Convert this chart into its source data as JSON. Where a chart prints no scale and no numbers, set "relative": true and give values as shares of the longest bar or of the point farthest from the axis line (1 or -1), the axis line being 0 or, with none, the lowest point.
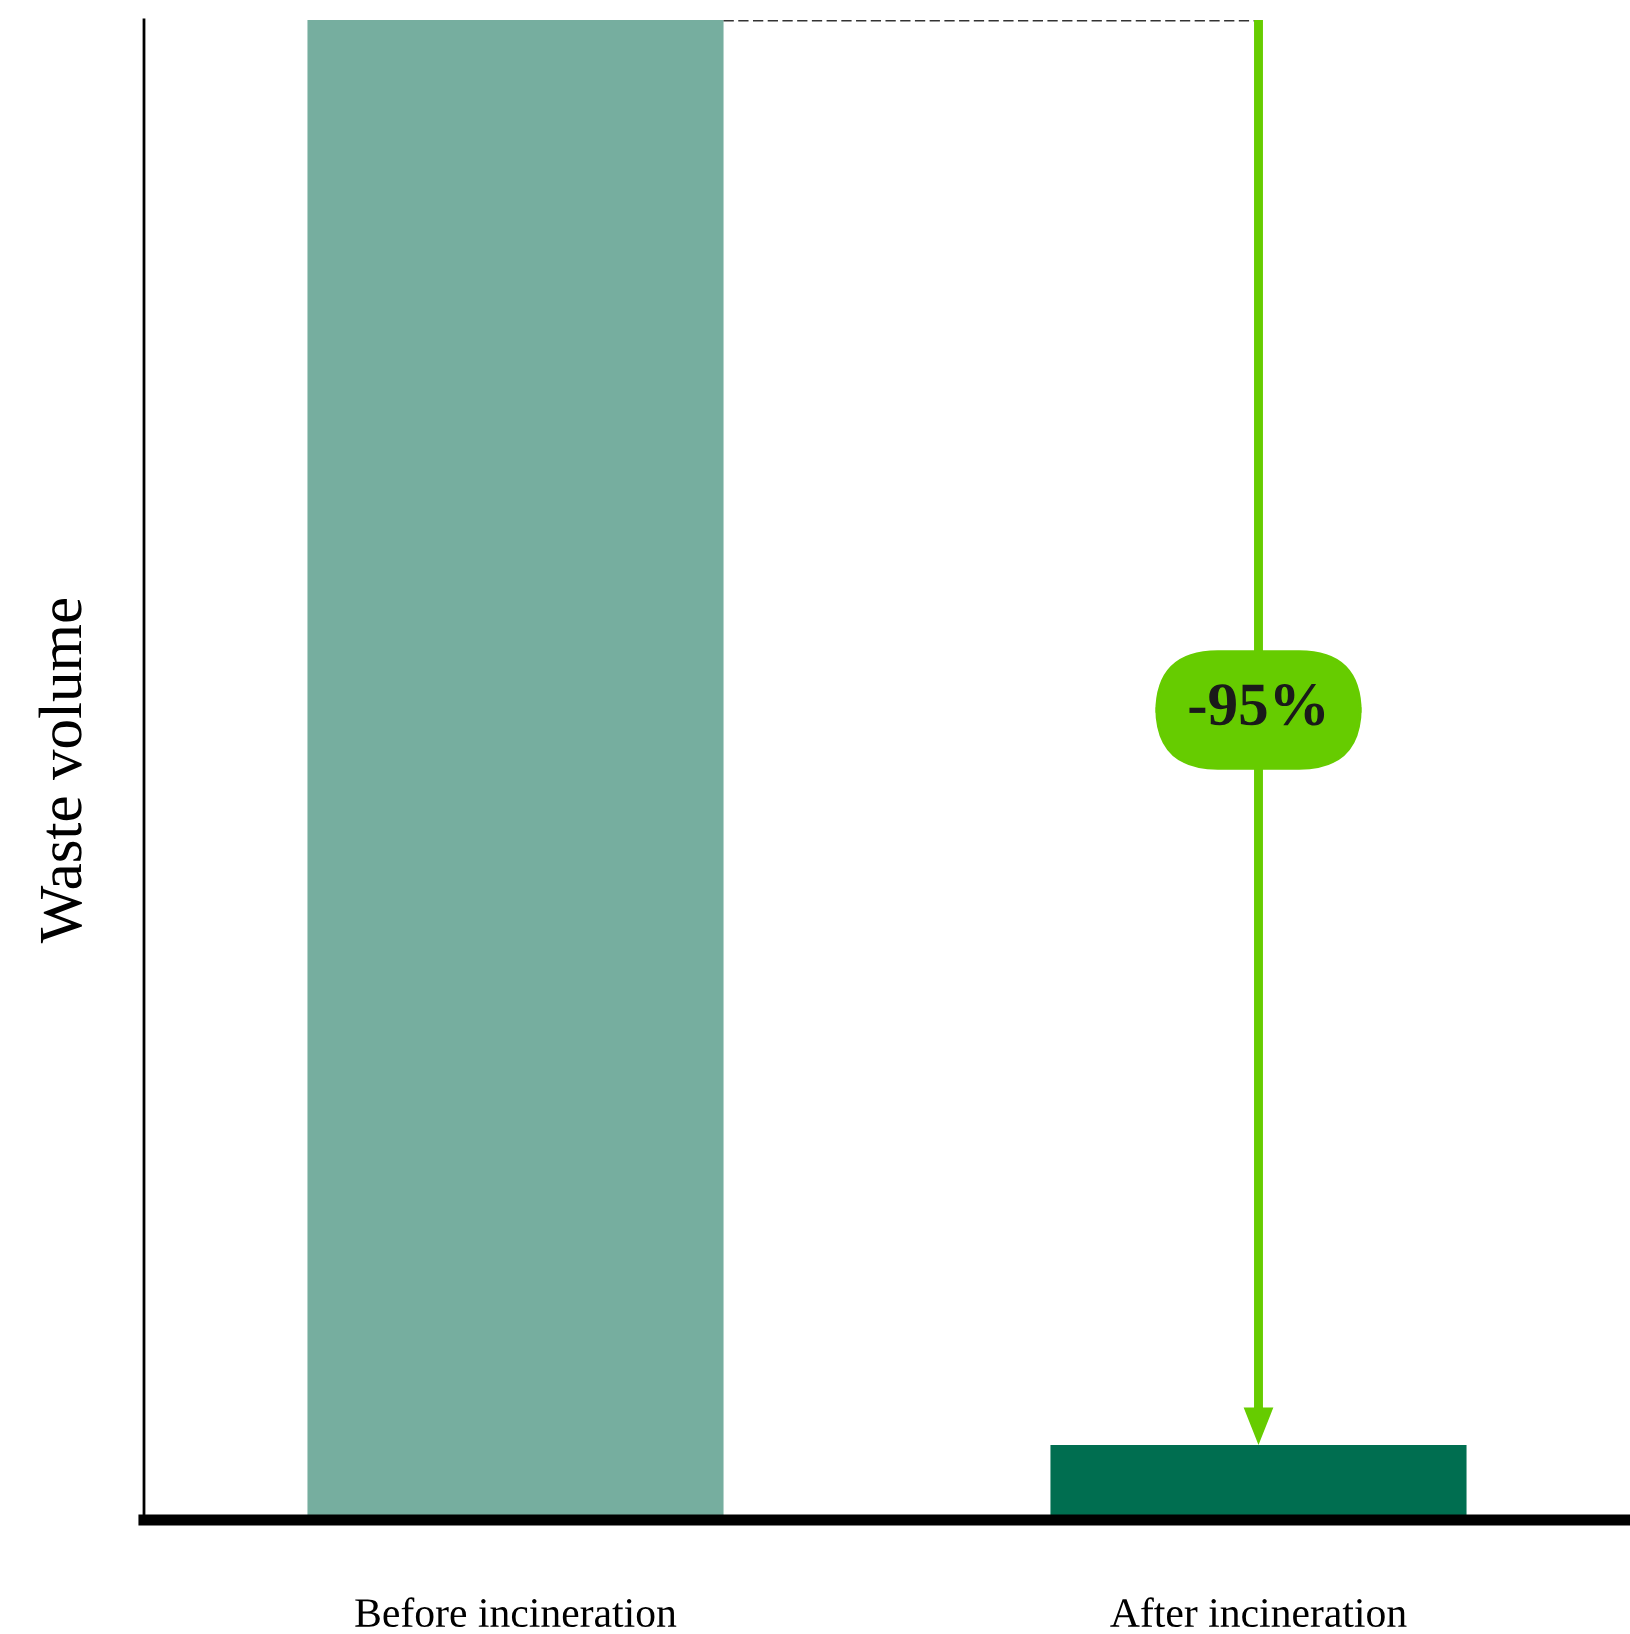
{
  "chart_data": {
    "type": "bar",
    "ylabel": "Waste volume",
    "categories": [
      "Before incineration",
      "After incineration"
    ],
    "values": [
      1,
      0.05
    ],
    "colors": [
      "#76ae9f",
      "#006e50"
    ],
    "relative": true,
    "annotations": [
      "-95%"
    ]
  }
}
